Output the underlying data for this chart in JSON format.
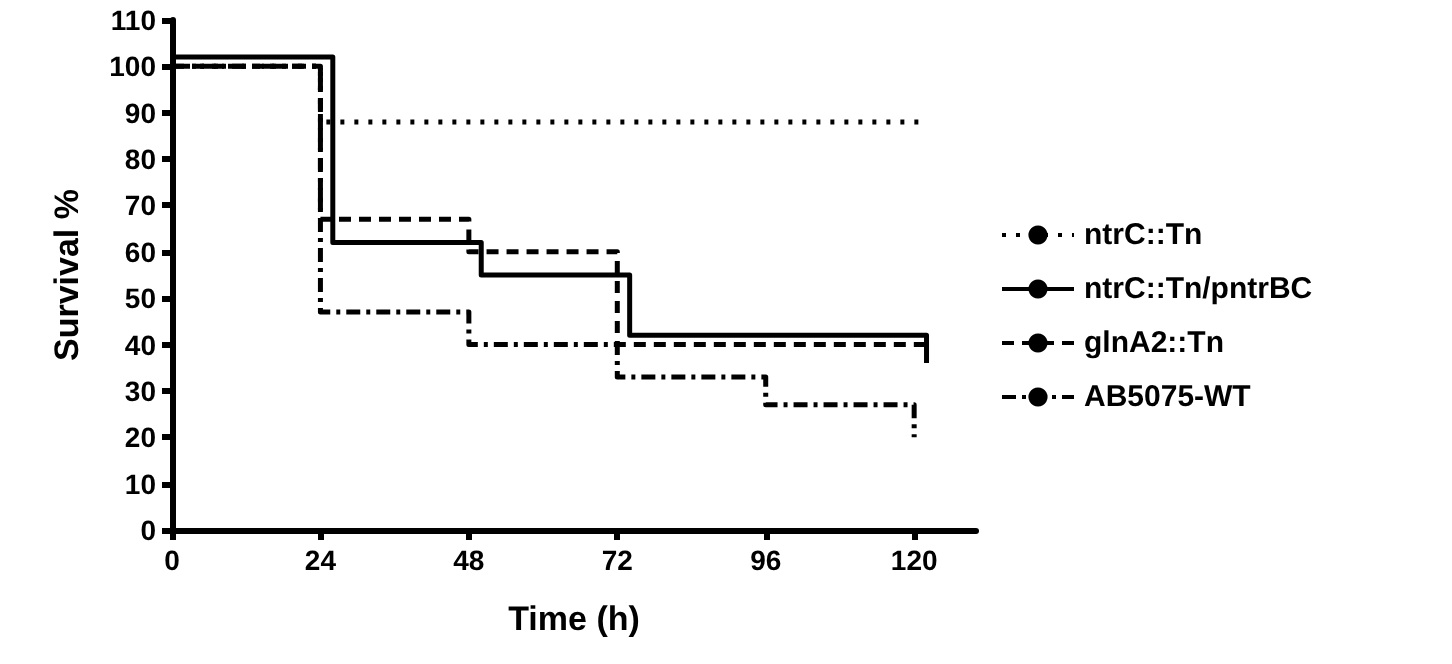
{
  "chart_data": {
    "type": "step",
    "xlabel": "Time (h)",
    "ylabel": "Survival %",
    "series": [
      {
        "name": "ntrC::Tn",
        "color": "#000000",
        "line_style": "dotted",
        "x": [
          0,
          24,
          121
        ],
        "values": [
          100,
          88,
          88
        ]
      },
      {
        "name": "ntrC::Tn/pntrBC",
        "color": "#000000",
        "line_style": "solid",
        "x": [
          0,
          26,
          50,
          74,
          122
        ],
        "values": [
          102,
          62,
          55,
          42,
          36
        ]
      },
      {
        "name": "glnA2::Tn",
        "color": "#000000",
        "line_style": "dashed",
        "x": [
          0,
          24,
          48,
          72,
          122
        ],
        "values": [
          100,
          67,
          60,
          40,
          40
        ]
      },
      {
        "name": "AB5075-WT",
        "color": "#000000",
        "line_style": "dashdot",
        "x": [
          0,
          24,
          48,
          72,
          96,
          120
        ],
        "values": [
          100,
          47,
          40,
          33,
          27,
          20
        ]
      }
    ],
    "xlim": [
      0,
      130
    ],
    "xticks": [
      0,
      24,
      48,
      72,
      96,
      120
    ],
    "ylim": [
      0,
      110
    ],
    "yticks": [
      0,
      10,
      20,
      30,
      40,
      50,
      60,
      70,
      80,
      90,
      100,
      110
    ],
    "grid": false,
    "legend": "right",
    "marker": "none"
  }
}
